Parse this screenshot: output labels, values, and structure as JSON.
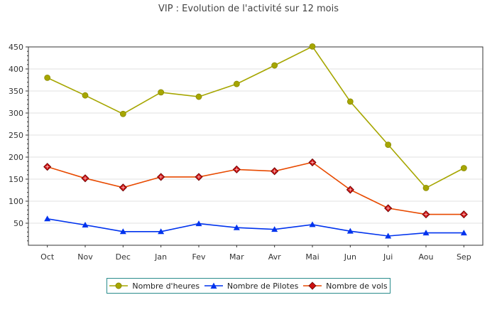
{
  "chart_data": {
    "type": "line",
    "title": "VIP : Evolution de l'activité sur 12 mois",
    "xlabel": "",
    "ylabel": "",
    "categories": [
      "Oct",
      "Nov",
      "Dec",
      "Jan",
      "Fev",
      "Mar",
      "Avr",
      "Mai",
      "Jun",
      "Jui",
      "Aou",
      "Sep"
    ],
    "ylim": [
      0,
      450
    ],
    "yticks": [
      50,
      100,
      150,
      200,
      250,
      300,
      350,
      400,
      450
    ],
    "grid": true,
    "legend_position": "bottom",
    "series": [
      {
        "name": "Nombre d'heures",
        "color": "#a6a600",
        "marker": "circle",
        "values": [
          380,
          340,
          298,
          347,
          337,
          366,
          408,
          451,
          326,
          228,
          130,
          175
        ]
      },
      {
        "name": "Nombre de Pilotes",
        "color": "#0033ee",
        "marker": "triangle",
        "values": [
          60,
          46,
          31,
          31,
          49,
          40,
          36,
          47,
          32,
          21,
          28,
          28
        ]
      },
      {
        "name": "Nombre de vols",
        "color": "#e84a00",
        "marker": "diamond",
        "markerColor": "#cc1111",
        "values": [
          178,
          152,
          131,
          155,
          155,
          172,
          168,
          188,
          126,
          84,
          70,
          70
        ]
      }
    ]
  }
}
